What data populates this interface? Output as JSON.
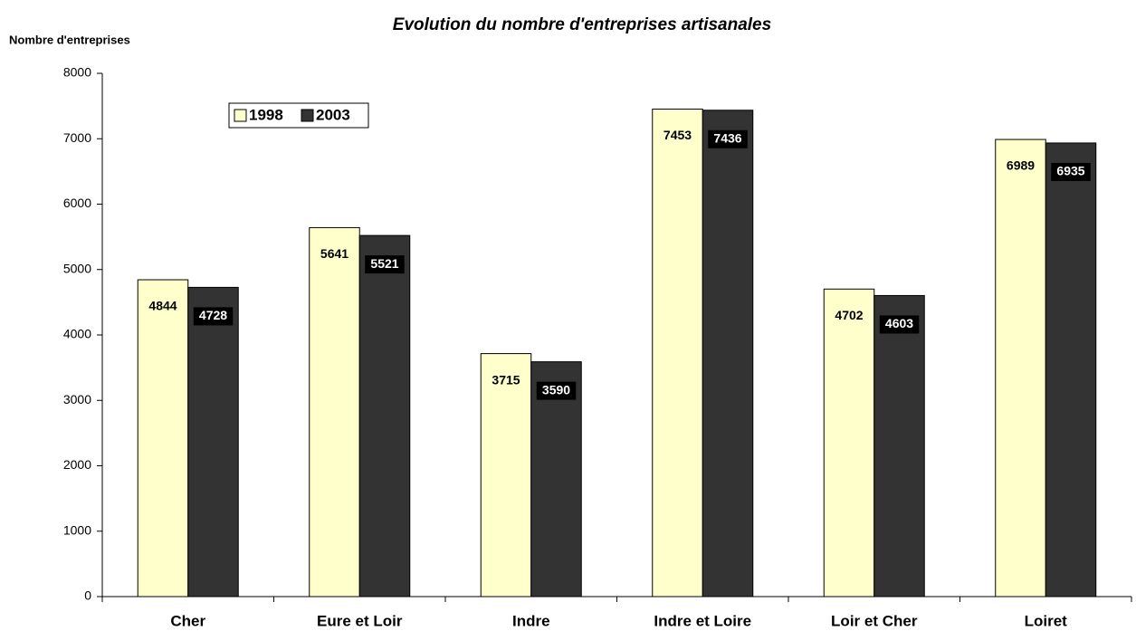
{
  "chart_data": {
    "type": "bar",
    "title": "Evolution du nombre d'entreprises artisanales",
    "y_label": "Nombre d'entreprises",
    "categories": [
      "Cher",
      "Eure et Loir",
      "Indre",
      "Indre et Loire",
      "Loir et Cher",
      "Loiret"
    ],
    "series": [
      {
        "name": "1998",
        "color": "#ffffcc",
        "values": [
          4844,
          5641,
          3715,
          7453,
          4702,
          6989
        ]
      },
      {
        "name": "2003",
        "color": "#333333",
        "values": [
          4728,
          5521,
          3590,
          7436,
          4603,
          6935
        ]
      }
    ],
    "ylim": [
      0,
      8000
    ],
    "yticks": [
      0,
      1000,
      2000,
      3000,
      4000,
      5000,
      6000,
      7000,
      8000
    ],
    "grid": false,
    "legend": "top-left"
  }
}
